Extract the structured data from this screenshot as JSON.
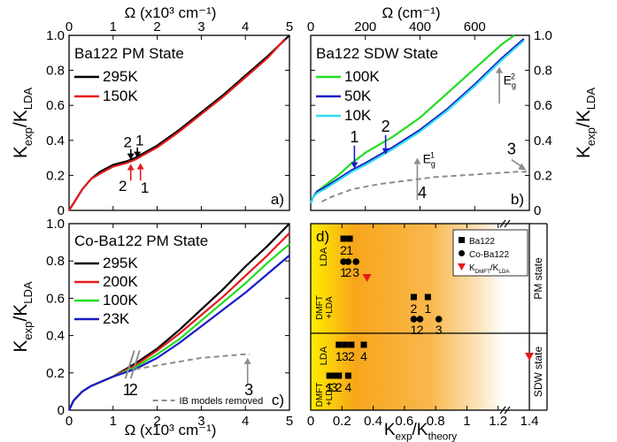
{
  "colors": {
    "black": "#000000",
    "red": "#e41a1c",
    "green": "#22dd22",
    "blue": "#1a1ac8",
    "cyan": "#33ddee",
    "gray": "#8c8c8c",
    "orange": "#f5a31c",
    "yellow": "#ffee00"
  },
  "chart_data": [
    {
      "panel": "a",
      "type": "line",
      "panel_label": "a)",
      "title": "Ba122 PM State",
      "xlabel_top": "Ω (x10³ cm⁻¹)",
      "ylabel_left": "Kexp/KLDA",
      "xlim": [
        0,
        5
      ],
      "ylim": [
        0,
        1.0
      ],
      "xticks": [
        0,
        1,
        2,
        3,
        4,
        5
      ],
      "yticks": [
        0,
        0.2,
        0.4,
        0.6,
        0.8,
        1.0
      ],
      "xtick_labels": [
        "0",
        "1",
        "2",
        "3",
        "4",
        "5"
      ],
      "ytick_labels": [
        "0",
        "0.2",
        "0.4",
        "0.6",
        "0.8",
        "1.0"
      ],
      "legend_position": "top-left",
      "series": [
        {
          "name": "295K",
          "color": "black",
          "x": [
            0,
            0.05,
            0.1,
            0.2,
            0.3,
            0.5,
            0.7,
            1.0,
            1.3,
            1.5,
            2.0,
            2.5,
            3.0,
            3.5,
            4.0,
            4.5,
            5.0
          ],
          "y": [
            0,
            0.02,
            0.04,
            0.08,
            0.12,
            0.18,
            0.22,
            0.26,
            0.28,
            0.3,
            0.37,
            0.46,
            0.56,
            0.66,
            0.77,
            0.88,
            1.0
          ]
        },
        {
          "name": "150K",
          "color": "red",
          "x": [
            0,
            0.05,
            0.1,
            0.2,
            0.3,
            0.5,
            0.7,
            1.0,
            1.3,
            1.5,
            2.0,
            2.5,
            3.0,
            3.5,
            4.0,
            4.5,
            4.9
          ],
          "y": [
            0,
            0.02,
            0.04,
            0.08,
            0.12,
            0.18,
            0.21,
            0.25,
            0.27,
            0.29,
            0.36,
            0.45,
            0.55,
            0.65,
            0.76,
            0.87,
            0.98
          ]
        }
      ],
      "annotations": [
        {
          "text": "2",
          "x": 1.33,
          "y": 0.36,
          "color": "black"
        },
        {
          "text": "1",
          "x": 1.6,
          "y": 0.37,
          "color": "black"
        },
        {
          "text": "2",
          "x": 1.22,
          "y": 0.11,
          "color": "red"
        },
        {
          "text": "1",
          "x": 1.72,
          "y": 0.1,
          "color": "red"
        }
      ]
    },
    {
      "panel": "b",
      "type": "line",
      "panel_label": "b)",
      "title": "Ba122 SDW State",
      "xlabel_top": "Ω (cm⁻¹)",
      "ylabel_right": "Kexp/KLDA",
      "xlim": [
        0,
        800
      ],
      "ylim": [
        0,
        1.0
      ],
      "xticks": [
        0,
        200,
        400,
        600
      ],
      "yticks": [
        0,
        0.2,
        0.4,
        0.6,
        0.8,
        1.0
      ],
      "xtick_labels": [
        "0",
        "200",
        "400",
        "600"
      ],
      "ytick_labels": [
        "0",
        "0.2",
        "0.4",
        "0.6",
        "0.8",
        "1.0"
      ],
      "legend_position": "top-left",
      "series": [
        {
          "name": "100K",
          "color": "green",
          "x": [
            0,
            10,
            25,
            50,
            100,
            150,
            200,
            300,
            400,
            500,
            600,
            700,
            745
          ],
          "y": [
            0.04,
            0.08,
            0.11,
            0.14,
            0.2,
            0.27,
            0.33,
            0.42,
            0.53,
            0.67,
            0.81,
            0.95,
            1.0
          ]
        },
        {
          "name": "50K",
          "color": "blue",
          "x": [
            0,
            10,
            25,
            50,
            100,
            150,
            200,
            300,
            400,
            500,
            600,
            700,
            780
          ],
          "y": [
            0.04,
            0.08,
            0.11,
            0.13,
            0.18,
            0.23,
            0.27,
            0.36,
            0.46,
            0.58,
            0.72,
            0.87,
            0.98
          ]
        },
        {
          "name": "10K",
          "color": "cyan",
          "x": [
            0,
            10,
            25,
            50,
            100,
            150,
            200,
            300,
            400,
            500,
            600,
            700,
            780
          ],
          "y": [
            0.04,
            0.08,
            0.1,
            0.12,
            0.17,
            0.22,
            0.26,
            0.35,
            0.45,
            0.57,
            0.71,
            0.86,
            0.97
          ]
        },
        {
          "name": "",
          "color": "gray",
          "dashed": true,
          "x": [
            40,
            80,
            150,
            250,
            350,
            450,
            550,
            650,
            750,
            790
          ],
          "y": [
            0.05,
            0.08,
            0.12,
            0.15,
            0.17,
            0.19,
            0.2,
            0.21,
            0.22,
            0.22
          ]
        }
      ],
      "annotations": [
        {
          "text": "1",
          "x": 160,
          "y": 0.39,
          "color": "blue"
        },
        {
          "text": "2",
          "x": 274,
          "y": 0.45,
          "color": "blue"
        },
        {
          "text": "E",
          "sub": "g",
          "sup": "1",
          "x": 410,
          "y": 0.27,
          "color": "gray"
        },
        {
          "text": "E",
          "sub": "g",
          "sup": "2",
          "x": 705,
          "y": 0.72,
          "color": "gray"
        },
        {
          "text": "4",
          "x": 408,
          "y": 0.07,
          "color": "gray"
        },
        {
          "text": "3",
          "x": 735,
          "y": 0.32,
          "color": "gray"
        }
      ]
    },
    {
      "panel": "c",
      "type": "line",
      "panel_label": "c)",
      "title": "Co-Ba122 PM State",
      "xlabel_bottom": "Ω (x10³ cm⁻¹)",
      "ylabel_left": "Kexp/KLDA",
      "xlim": [
        0,
        5
      ],
      "ylim": [
        0,
        1.0
      ],
      "xticks": [
        0,
        1,
        2,
        3,
        4,
        5
      ],
      "yticks": [
        0,
        0.2,
        0.4,
        0.6,
        0.8,
        1.0
      ],
      "xtick_labels": [
        "0",
        "1",
        "2",
        "3",
        "4",
        "5"
      ],
      "ytick_labels": [
        "0",
        "0.2",
        "0.4",
        "0.6",
        "0.8",
        "1.0"
      ],
      "legend_position": "top-left",
      "legend_note": "IB models removed",
      "series": [
        {
          "name": "295K",
          "color": "black",
          "x": [
            0,
            0.1,
            0.3,
            0.5,
            0.8,
            1.0,
            1.5,
            2.0,
            2.5,
            3.0,
            3.5,
            4.0,
            4.5,
            5.0
          ],
          "y": [
            0,
            0.05,
            0.1,
            0.13,
            0.16,
            0.18,
            0.25,
            0.33,
            0.43,
            0.54,
            0.65,
            0.77,
            0.88,
            1.0
          ]
        },
        {
          "name": "200K",
          "color": "red",
          "x": [
            0,
            0.1,
            0.3,
            0.5,
            0.8,
            1.0,
            1.5,
            2.0,
            2.5,
            3.0,
            3.5,
            4.0,
            4.5,
            5.0
          ],
          "y": [
            0,
            0.05,
            0.1,
            0.13,
            0.16,
            0.18,
            0.24,
            0.32,
            0.41,
            0.51,
            0.61,
            0.72,
            0.83,
            0.95
          ]
        },
        {
          "name": "100K",
          "color": "green",
          "x": [
            0,
            0.1,
            0.3,
            0.5,
            0.8,
            1.0,
            1.5,
            2.0,
            2.5,
            3.0,
            3.5,
            4.0,
            4.5,
            5.0
          ],
          "y": [
            0,
            0.05,
            0.1,
            0.13,
            0.16,
            0.18,
            0.23,
            0.3,
            0.38,
            0.48,
            0.58,
            0.68,
            0.79,
            0.89
          ]
        },
        {
          "name": "23K",
          "color": "blue",
          "x": [
            0,
            0.1,
            0.3,
            0.5,
            0.8,
            1.0,
            1.5,
            2.0,
            2.5,
            3.0,
            3.5,
            4.0,
            4.5,
            5.0
          ],
          "y": [
            0,
            0.05,
            0.1,
            0.13,
            0.16,
            0.18,
            0.22,
            0.28,
            0.36,
            0.45,
            0.54,
            0.63,
            0.73,
            0.83
          ]
        },
        {
          "name": "IB models removed",
          "color": "gray",
          "dashed": true,
          "x": [
            1.5,
            2.0,
            2.5,
            3.0,
            3.5,
            4.0,
            4.1
          ],
          "y": [
            0.22,
            0.24,
            0.26,
            0.28,
            0.29,
            0.3,
            0.3
          ]
        }
      ],
      "annotations": [
        {
          "text": "1",
          "x": 1.32,
          "y": 0.08,
          "color": "gray"
        },
        {
          "text": "2",
          "x": 1.46,
          "y": 0.08,
          "color": "gray"
        },
        {
          "text": "3",
          "x": 4.08,
          "y": 0.08,
          "color": "gray"
        }
      ]
    },
    {
      "panel": "d",
      "type": "scatter",
      "panel_label": "d)",
      "xlabel_bottom": "Kexp/Ktheory",
      "xlim": [
        0,
        1.4
      ],
      "xticks": [
        0,
        0.2,
        0.4,
        0.6,
        0.8,
        1.0,
        1.2,
        1.4
      ],
      "xtick_labels": [
        "0",
        "0.2",
        "0.4",
        "0.6",
        "0.8",
        "1",
        "1.2",
        "1.4"
      ],
      "row_labels": [
        "LDA",
        "DMFT +LDA",
        "LDA",
        "DMFT +LDA"
      ],
      "group_labels": [
        "PM state",
        "SDW state"
      ],
      "legend_position": "top-right",
      "legend": [
        {
          "label": "Ba122",
          "marker": "square"
        },
        {
          "label": "Co-Ba122",
          "marker": "circle"
        },
        {
          "label": "KDMFT/KLDA",
          "marker": "triangle"
        }
      ],
      "points": [
        {
          "series": "Ba122",
          "x": 0.21,
          "row": 0,
          "level": "upper",
          "label": "2"
        },
        {
          "series": "Ba122",
          "x": 0.25,
          "row": 0,
          "level": "upper",
          "label": "1"
        },
        {
          "series": "Co-Ba122",
          "x": 0.21,
          "row": 0,
          "level": "lower",
          "label": "1"
        },
        {
          "series": "Co-Ba122",
          "x": 0.24,
          "row": 0,
          "level": "lower",
          "label": "2"
        },
        {
          "series": "Co-Ba122",
          "x": 0.29,
          "row": 0,
          "level": "lower",
          "label": "3"
        },
        {
          "series": "KDMFT/KLDA",
          "x": 0.36,
          "row": 0,
          "level": "mid",
          "label": ""
        },
        {
          "series": "Ba122",
          "x": 0.66,
          "row": 1,
          "level": "upper",
          "label": "2"
        },
        {
          "series": "Ba122",
          "x": 0.75,
          "row": 1,
          "level": "upper",
          "label": "1"
        },
        {
          "series": "Co-Ba122",
          "x": 0.66,
          "row": 1,
          "level": "lower",
          "label": "1"
        },
        {
          "series": "Co-Ba122",
          "x": 0.7,
          "row": 1,
          "level": "lower",
          "label": "2"
        },
        {
          "series": "Co-Ba122",
          "x": 0.82,
          "row": 1,
          "level": "lower",
          "label": "3"
        },
        {
          "series": "Ba122",
          "x": 0.18,
          "row": 2,
          "level": "mid",
          "label": "1"
        },
        {
          "series": "Ba122",
          "x": 0.22,
          "row": 2,
          "level": "mid",
          "label": "3"
        },
        {
          "series": "Ba122",
          "x": 0.26,
          "row": 2,
          "level": "mid",
          "label": "2"
        },
        {
          "series": "Ba122",
          "x": 0.34,
          "row": 2,
          "level": "mid",
          "label": "4"
        },
        {
          "series": "Ba122",
          "x": 0.12,
          "row": 3,
          "level": "mid",
          "label": "1"
        },
        {
          "series": "Ba122",
          "x": 0.15,
          "row": 3,
          "level": "mid",
          "label": "3"
        },
        {
          "series": "Ba122",
          "x": 0.18,
          "row": 3,
          "level": "mid",
          "label": "2"
        },
        {
          "series": "Ba122",
          "x": 0.24,
          "row": 3,
          "level": "mid",
          "label": "4"
        },
        {
          "series": "KDMFT/KLDA",
          "x": 1.36,
          "row": 2,
          "level": "lower",
          "label": ""
        }
      ]
    }
  ]
}
